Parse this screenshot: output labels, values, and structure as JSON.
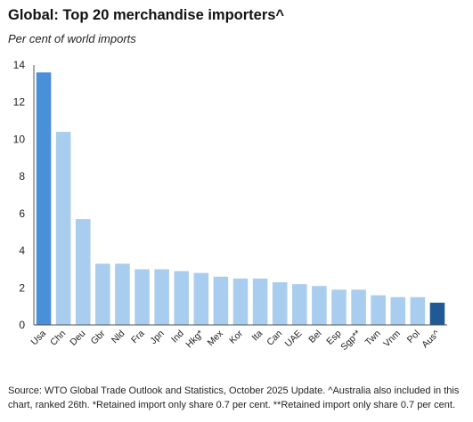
{
  "header": {
    "title": "Global: Top 20 merchandise importers^",
    "subtitle": "Per cent of world imports"
  },
  "footer": {
    "source": "Source: WTO Global Trade Outlook and Statistics, October 2025 Update. ^Australia also included in this chart, ranked 26th. *Retained import only share 0.7 per cent. **Retained import only share 0.7 per cent."
  },
  "colors": {
    "default_bar": "#a9cdee",
    "highlight_bar": "#4a90d9",
    "australia_bar": "#1f5a96",
    "axis": "#555555",
    "text": "#222222"
  },
  "chart_data": {
    "type": "bar",
    "title": "Global: Top 20 merchandise importers^",
    "subtitle": "Per cent of world imports",
    "xlabel": "",
    "ylabel": "",
    "ylim": [
      0,
      14
    ],
    "yticks": [
      0,
      2,
      4,
      6,
      8,
      10,
      12,
      14
    ],
    "grid": false,
    "categories": [
      "Usa",
      "Chn",
      "Deu",
      "Gbr",
      "Nld",
      "Fra",
      "Jpn",
      "Ind",
      "Hkg*",
      "Mex",
      "Kor",
      "Ita",
      "Can",
      "UAE",
      "Bel",
      "Esp",
      "Sgp**",
      "Twn",
      "Vnm",
      "Pol",
      "Aus^"
    ],
    "values": [
      13.6,
      10.4,
      5.7,
      3.3,
      3.3,
      3.0,
      3.0,
      2.9,
      2.8,
      2.6,
      2.5,
      2.5,
      2.3,
      2.2,
      2.1,
      1.9,
      1.9,
      1.6,
      1.5,
      1.5,
      1.2
    ],
    "bar_colors": [
      "#4a90d9",
      "#a9cdee",
      "#a9cdee",
      "#a9cdee",
      "#a9cdee",
      "#a9cdee",
      "#a9cdee",
      "#a9cdee",
      "#a9cdee",
      "#a9cdee",
      "#a9cdee",
      "#a9cdee",
      "#a9cdee",
      "#a9cdee",
      "#a9cdee",
      "#a9cdee",
      "#a9cdee",
      "#a9cdee",
      "#a9cdee",
      "#a9cdee",
      "#1f5a96"
    ]
  }
}
